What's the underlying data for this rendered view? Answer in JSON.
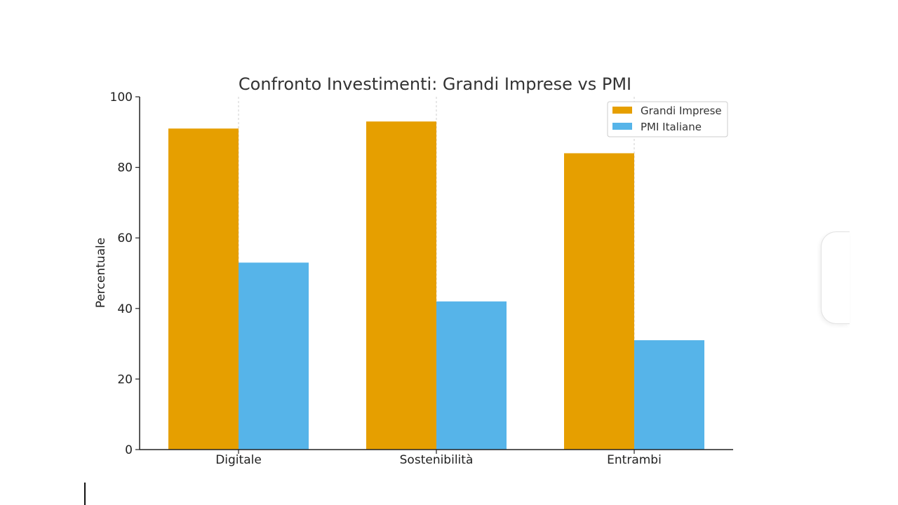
{
  "chart_data": {
    "type": "bar",
    "title": "Confronto Investimenti: Grandi Imprese vs PMI",
    "xlabel": "",
    "ylabel": "Percentuale",
    "ylim": [
      0,
      100
    ],
    "yticks": [
      "0",
      "20",
      "40",
      "60",
      "80",
      "100"
    ],
    "categories": [
      "Digitale",
      "Sostenibilità",
      "Entrambi"
    ],
    "series": [
      {
        "name": "Grandi Imprese",
        "color": "#E69F00",
        "values": [
          91,
          93,
          84
        ]
      },
      {
        "name": "PMI Italiane",
        "color": "#56B4E9",
        "values": [
          53,
          42,
          31
        ]
      }
    ],
    "grid": "x-axis dashed",
    "legend_position": "top-right"
  }
}
